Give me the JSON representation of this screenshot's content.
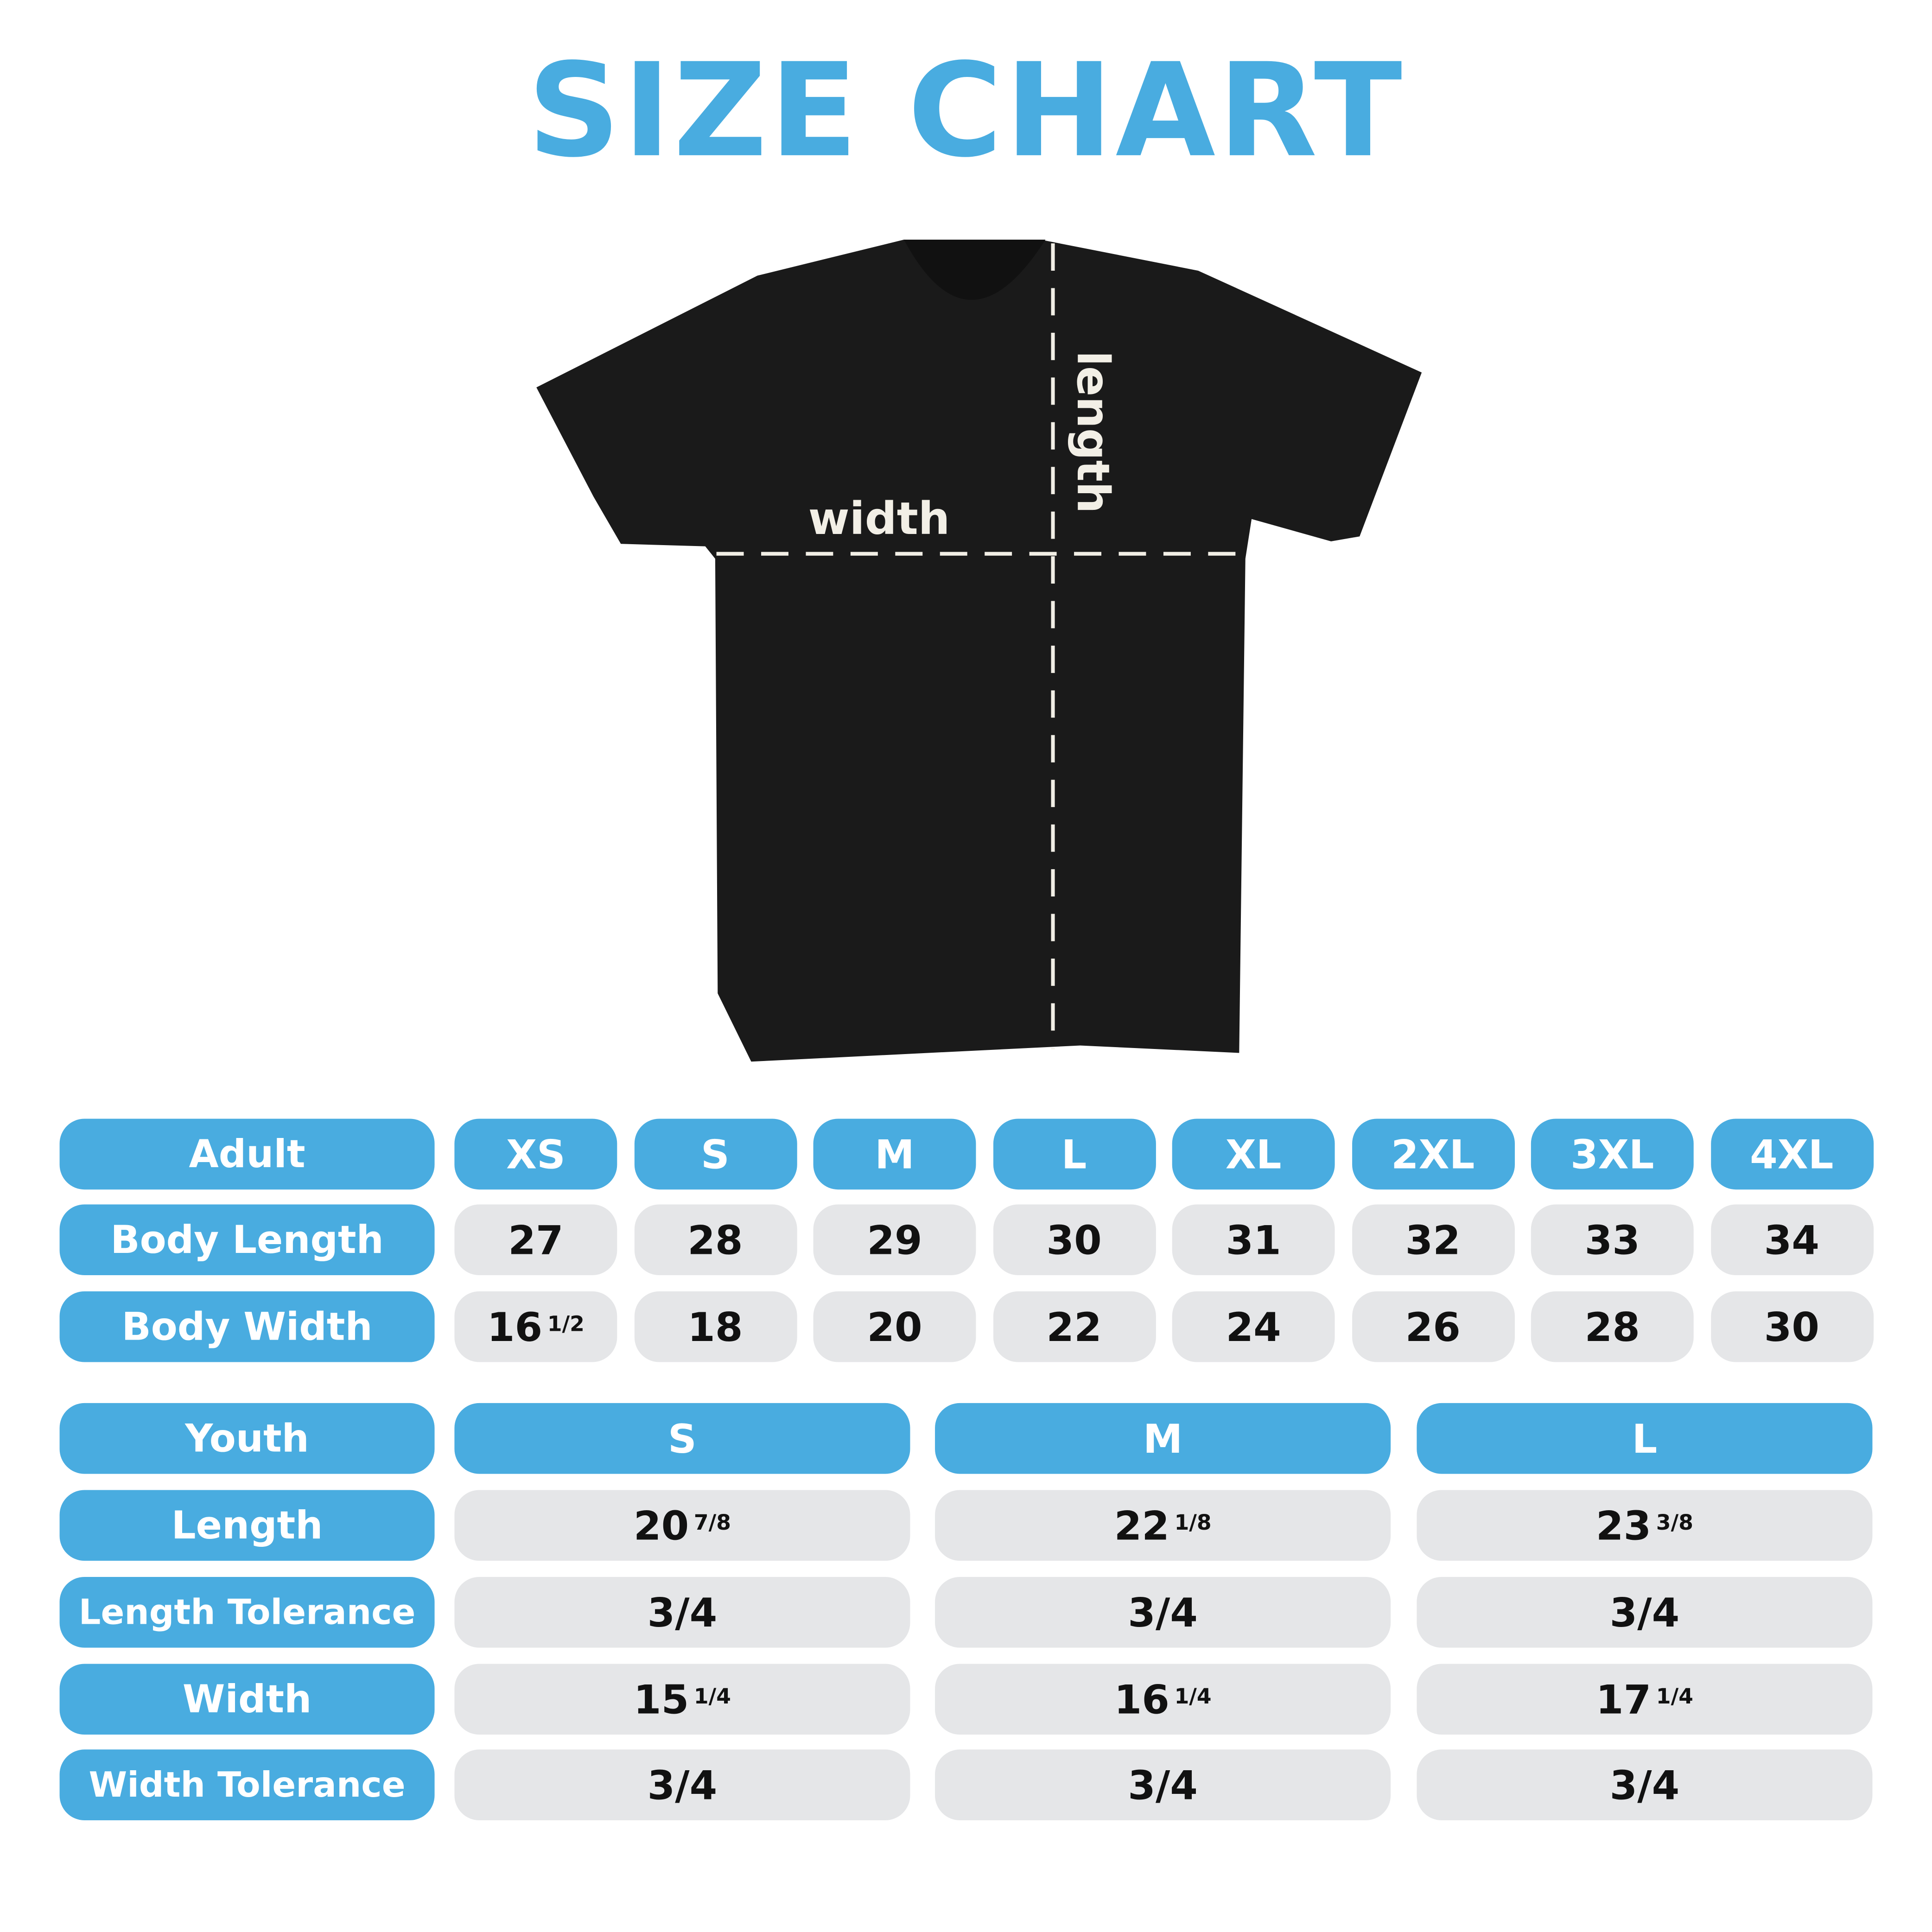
{
  "title": "SIZE CHART",
  "colors": {
    "accent": "#49ACE0",
    "cell": "#E5E6E8",
    "shirt": "#1A1A1A"
  },
  "shirt": {
    "width_label": "width",
    "length_label": "length"
  },
  "adult": {
    "header": "Adult",
    "sizes": [
      "XS",
      "S",
      "M",
      "L",
      "XL",
      "2XL",
      "3XL",
      "4XL"
    ],
    "rows": [
      {
        "label": "Body Length",
        "values": [
          {
            "whole": "27"
          },
          {
            "whole": "28"
          },
          {
            "whole": "29"
          },
          {
            "whole": "30"
          },
          {
            "whole": "31"
          },
          {
            "whole": "32"
          },
          {
            "whole": "33"
          },
          {
            "whole": "34"
          }
        ]
      },
      {
        "label": "Body Width",
        "values": [
          {
            "whole": "16",
            "frac": "1/2"
          },
          {
            "whole": "18"
          },
          {
            "whole": "20"
          },
          {
            "whole": "22"
          },
          {
            "whole": "24"
          },
          {
            "whole": "26"
          },
          {
            "whole": "28"
          },
          {
            "whole": "30"
          }
        ]
      }
    ]
  },
  "youth": {
    "header": "Youth",
    "sizes": [
      "S",
      "M",
      "L"
    ],
    "rows": [
      {
        "label": "Length",
        "values": [
          {
            "whole": "20",
            "frac": "7/8"
          },
          {
            "whole": "22",
            "frac": "1/8"
          },
          {
            "whole": "23",
            "frac": "3/8"
          }
        ]
      },
      {
        "label": "Length Tolerance",
        "values": [
          {
            "whole": "3/4"
          },
          {
            "whole": "3/4"
          },
          {
            "whole": "3/4"
          }
        ]
      },
      {
        "label": "Width",
        "values": [
          {
            "whole": "15",
            "frac": "1/4"
          },
          {
            "whole": "16",
            "frac": "1/4"
          },
          {
            "whole": "17",
            "frac": "1/4"
          }
        ]
      },
      {
        "label": "Width Tolerance",
        "values": [
          {
            "whole": "3/4"
          },
          {
            "whole": "3/4"
          },
          {
            "whole": "3/4"
          }
        ]
      }
    ]
  }
}
